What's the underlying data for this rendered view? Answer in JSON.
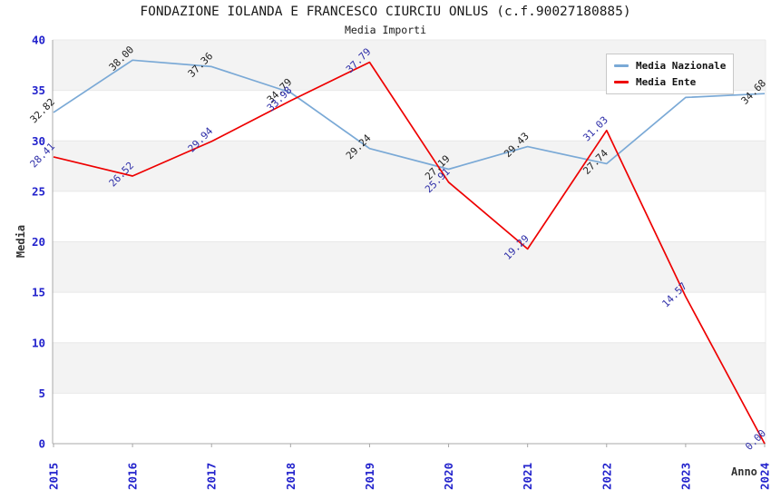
{
  "title": "FONDAZIONE IOLANDA E FRANCESCO CIURCIU ONLUS (c.f.90027180885)",
  "subtitle": "Media Importi",
  "chart_data": {
    "type": "line",
    "x": [
      "2015",
      "2016",
      "2017",
      "2018",
      "2019",
      "2020",
      "2021",
      "2022",
      "2023",
      "2024"
    ],
    "xlabel": "Anno",
    "ylabel": "Media",
    "ylim": [
      0,
      40
    ],
    "yticks": [
      "0",
      "5",
      "10",
      "15",
      "20",
      "25",
      "30",
      "35",
      "40"
    ],
    "grid": "horizontal-bands-alternating",
    "legend_position": "top-right",
    "series": [
      {
        "name": "Media Nazionale",
        "color": "#7aa9d6",
        "values": [
          32.82,
          38.0,
          37.36,
          34.79,
          29.24,
          27.19,
          29.43,
          27.74,
          34.3,
          34.68
        ],
        "point_labels": [
          "32.82",
          "38.00",
          "37.36",
          "34.79",
          "29.24",
          "27.19",
          "29.43",
          "27.74",
          null,
          "34.68"
        ],
        "label_color": "#1f1f1f",
        "note": "2023 point label is hidden behind the legend box"
      },
      {
        "name": "Media Ente",
        "color": "#ee0000",
        "values": [
          28.41,
          26.52,
          29.94,
          33.98,
          37.79,
          25.91,
          19.29,
          31.03,
          14.57,
          0.0
        ],
        "point_labels": [
          "28.41",
          "26.52",
          "29.94",
          "33.98",
          "37.79",
          "25.91",
          "19.29",
          "31.03",
          "14.57",
          "0.00"
        ],
        "label_color": "#2e2ea8"
      }
    ],
    "style": {
      "band_fill": "#f3f3f3",
      "grid_color": "#e8e8e8",
      "axis_color": "#a8a8a8",
      "tick_label_color": "#2222cc",
      "axis_title_color": "#333333",
      "title_color": "#1a1a1a"
    }
  }
}
